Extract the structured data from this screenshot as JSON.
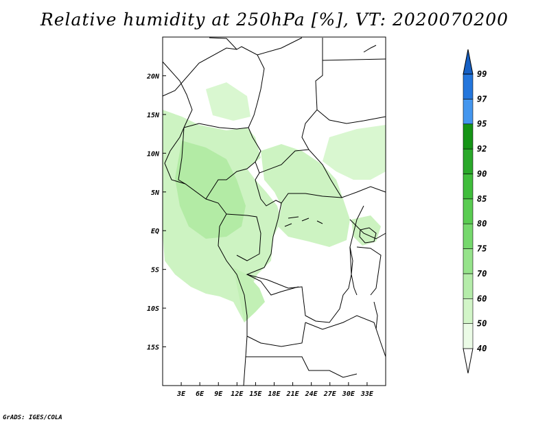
{
  "title": "Relative humidity at 250hPa [%], VT: 2020070200",
  "credit": "GrADS: IGES/COLA",
  "map": {
    "lon_range": [
      0,
      36
    ],
    "lat_range": [
      -20,
      25
    ],
    "lon_ticks": [
      {
        "value": 3,
        "label": "3E"
      },
      {
        "value": 6,
        "label": "6E"
      },
      {
        "value": 9,
        "label": "9E"
      },
      {
        "value": 12,
        "label": "12E"
      },
      {
        "value": 15,
        "label": "15E"
      },
      {
        "value": 18,
        "label": "18E"
      },
      {
        "value": 21,
        "label": "21E"
      },
      {
        "value": 24,
        "label": "24E"
      },
      {
        "value": 27,
        "label": "27E"
      },
      {
        "value": 30,
        "label": "30E"
      },
      {
        "value": 33,
        "label": "33E"
      }
    ],
    "lat_ticks": [
      {
        "value": 20,
        "label": "20N"
      },
      {
        "value": 15,
        "label": "15N"
      },
      {
        "value": 10,
        "label": "10N"
      },
      {
        "value": 5,
        "label": "5N"
      },
      {
        "value": 0,
        "label": "EQ"
      },
      {
        "value": -5,
        "label": "5S"
      },
      {
        "value": -10,
        "label": "10S"
      },
      {
        "value": -15,
        "label": "15S"
      }
    ]
  },
  "colorbar": {
    "levels": [
      "40",
      "50",
      "60",
      "70",
      "75",
      "80",
      "85",
      "90",
      "92",
      "95",
      "97",
      "99"
    ],
    "colors": [
      "#ebfbe6",
      "#d2f5c8",
      "#b5ecaa",
      "#96e38b",
      "#76d86d",
      "#5acc52",
      "#40bd3c",
      "#2aa82a",
      "#159416",
      "#4496ee",
      "#2476dc",
      "#1660c4"
    ],
    "below_color": "#ffffff",
    "above_color": "#1660c4"
  }
}
